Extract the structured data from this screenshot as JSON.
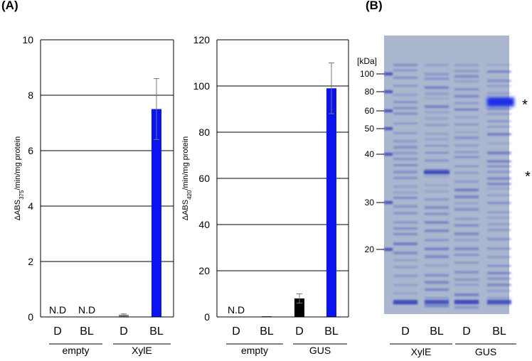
{
  "panel_labels": {
    "a": "(A)",
    "b": "(B)"
  },
  "chart_data": [
    {
      "type": "bar",
      "ylabel": "ΔABS375/min/mg protein",
      "ylabel_parts": {
        "delta": "Δ",
        "main": "ABS",
        "sub": "375",
        "tail": "/min/mg protein"
      },
      "ylim": [
        0,
        10
      ],
      "yticks": [
        0,
        2,
        4,
        6,
        8,
        10
      ],
      "grid": true,
      "categories": [
        "D",
        "BL",
        "D",
        "BL"
      ],
      "groups": [
        {
          "label": "empty",
          "span": [
            0,
            1
          ]
        },
        {
          "label": "XylE",
          "span": [
            2,
            3
          ]
        }
      ],
      "values": [
        0,
        0,
        0.08,
        7.5
      ],
      "errors": [
        0,
        0,
        0.03,
        1.1
      ],
      "colors": [
        "#000000",
        "#000000",
        "#888888",
        "#0a14f0"
      ],
      "annotations": [
        "N.D",
        "N.D",
        "",
        ""
      ]
    },
    {
      "type": "bar",
      "ylabel": "ΔABS420/min/mg protein",
      "ylabel_parts": {
        "delta": "Δ",
        "main": "ABS",
        "sub": "420",
        "tail": "/min/mg protein"
      },
      "ylim": [
        0,
        120
      ],
      "yticks": [
        0,
        20,
        40,
        60,
        80,
        100,
        120
      ],
      "grid": true,
      "categories": [
        "D",
        "BL",
        "D",
        "BL"
      ],
      "groups": [
        {
          "label": "empty",
          "span": [
            0,
            1
          ]
        },
        {
          "label": "GUS",
          "span": [
            2,
            3
          ]
        }
      ],
      "values": [
        0,
        0.3,
        8,
        99
      ],
      "errors": [
        0,
        0,
        2,
        11
      ],
      "colors": [
        "#000000",
        "#555555",
        "#000000",
        "#0a14f0"
      ],
      "annotations": [
        "N.D",
        "",
        "",
        ""
      ]
    }
  ],
  "gel": {
    "unit_label": "[kDa]",
    "markers": [
      "100",
      "80",
      "60",
      "50",
      "40",
      "30",
      "20"
    ],
    "marker_kda": [
      100,
      80,
      60,
      50,
      40,
      30,
      20
    ],
    "lanes": [
      "D",
      "BL",
      "D",
      "BL"
    ],
    "groups": [
      {
        "label": "XylE",
        "span": [
          0,
          1
        ]
      },
      {
        "label": "GUS",
        "span": [
          2,
          3
        ]
      }
    ],
    "band_markers": [
      "*",
      "*"
    ],
    "colors": {
      "background": "#aab7cf",
      "band": "#2d3ab8",
      "strong_band": "#1e2ee6"
    }
  }
}
